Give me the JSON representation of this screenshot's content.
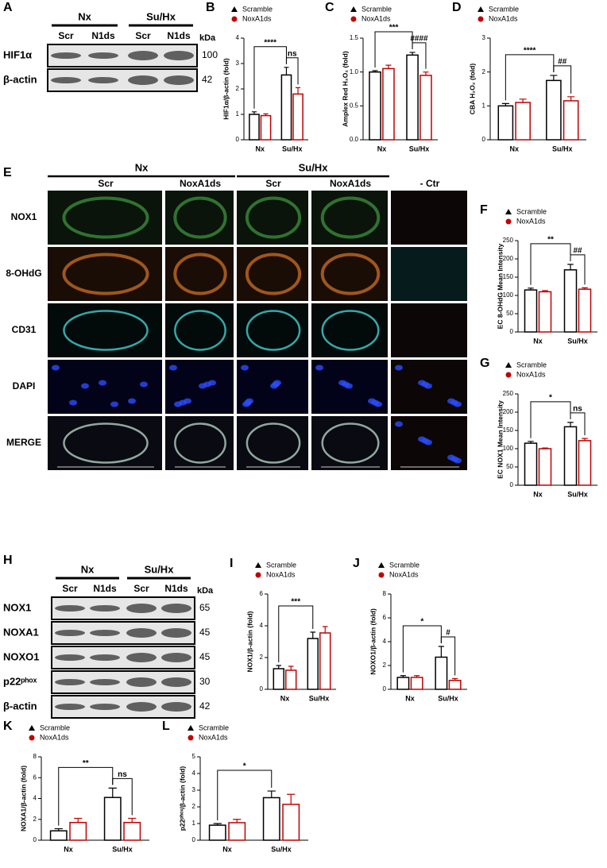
{
  "blot_a": {
    "letter": "A",
    "groups": [
      "Nx",
      "Su/Hx"
    ],
    "lanes": [
      "Scr",
      "N1ds",
      "Scr",
      "N1ds"
    ],
    "unit": "kDa",
    "rows": [
      {
        "label": "HIF1α",
        "kda": "100"
      },
      {
        "label": "β-actin",
        "kda": "42"
      }
    ]
  },
  "micro": {
    "letter": "E",
    "groups": [
      "Nx",
      "Su/Hx"
    ],
    "columns": [
      "Scr",
      "NoxA1ds",
      "Scr",
      "NoxA1ds",
      "- Ctr"
    ],
    "rows": [
      "NOX1",
      "8-OHdG",
      "CD31",
      "DAPI",
      "MERGE"
    ]
  },
  "blot_h": {
    "letter": "H",
    "groups": [
      "Nx",
      "Su/Hx"
    ],
    "lanes": [
      "Scr",
      "N1ds",
      "Scr",
      "N1ds"
    ],
    "unit": "kDa",
    "rows": [
      {
        "label": "NOX1",
        "kda": "65"
      },
      {
        "label": "NOXA1",
        "kda": "45"
      },
      {
        "label": "NOXO1",
        "kda": "45"
      },
      {
        "label": "p22ᵖʰᵒˣ",
        "kda": "30"
      },
      {
        "label": "β-actin",
        "kda": "42"
      }
    ]
  },
  "chart_data": [
    {
      "type": "bar",
      "letter": "B",
      "y_label": "HIF1α/β-actin (fold)",
      "categories": [
        "Nx",
        "Su/Hx"
      ],
      "series": [
        {
          "name": "Scramble",
          "color": "#000000",
          "values": [
            1.0,
            2.55
          ],
          "errors": [
            0.1,
            0.3
          ]
        },
        {
          "name": "NoxA1ds",
          "color": "#c00000",
          "values": [
            0.95,
            1.8
          ],
          "errors": [
            0.07,
            0.25
          ]
        }
      ],
      "ylim": [
        0,
        4
      ],
      "yticks": [
        0,
        1,
        2,
        3,
        4
      ],
      "annotations": [
        "****",
        "ns"
      ]
    },
    {
      "type": "bar",
      "letter": "C",
      "y_label": "Amplex Red H₂O₂ (fold)",
      "categories": [
        "Nx",
        "Su/Hx"
      ],
      "series": [
        {
          "name": "Scramble",
          "color": "#000000",
          "values": [
            1.0,
            1.25
          ],
          "errors": [
            0.02,
            0.04
          ]
        },
        {
          "name": "NoxA1ds",
          "color": "#c00000",
          "values": [
            1.05,
            0.95
          ],
          "errors": [
            0.05,
            0.05
          ]
        }
      ],
      "ylim": [
        0,
        1.5
      ],
      "yticks": [
        {
          "value": 0,
          "label": "0.0"
        },
        0.5,
        {
          "value": 1,
          "label": "1.0"
        },
        1.5
      ],
      "annotations": [
        "***",
        "####"
      ]
    },
    {
      "type": "bar",
      "letter": "D",
      "y_label": "CBA H₂O₂ (fold)",
      "categories": [
        "Nx",
        "Su/Hx"
      ],
      "series": [
        {
          "name": "Scramble",
          "color": "#000000",
          "values": [
            1.0,
            1.75
          ],
          "errors": [
            0.07,
            0.15
          ]
        },
        {
          "name": "NoxA1ds",
          "color": "#c00000",
          "values": [
            1.1,
            1.15
          ],
          "errors": [
            0.1,
            0.12
          ]
        }
      ],
      "ylim": [
        0,
        3
      ],
      "yticks": [
        0,
        1,
        2,
        3
      ],
      "annotations": [
        "****",
        "##"
      ]
    },
    {
      "type": "bar",
      "letter": "F",
      "y_label": "EC 8-OHdG Mean Intensity",
      "categories": [
        "Nx",
        "Su/Hx"
      ],
      "series": [
        {
          "name": "Scramble",
          "color": "#000000",
          "values": [
            115,
            170
          ],
          "errors": [
            5,
            15
          ]
        },
        {
          "name": "NoxA1ds",
          "color": "#c00000",
          "values": [
            110,
            117
          ],
          "errors": [
            3,
            4
          ]
        }
      ],
      "ylim": [
        0,
        250
      ],
      "yticks": [
        0,
        50,
        100,
        150,
        200,
        250
      ],
      "annotations": [
        "**",
        "##"
      ]
    },
    {
      "type": "bar",
      "letter": "G",
      "y_label": "EC NOX1 Mean Intensity",
      "categories": [
        "Nx",
        "Su/Hx"
      ],
      "series": [
        {
          "name": "Scramble",
          "color": "#000000",
          "values": [
            115,
            160
          ],
          "errors": [
            5,
            12
          ]
        },
        {
          "name": "NoxA1ds",
          "color": "#c00000",
          "values": [
            100,
            122
          ],
          "errors": [
            2,
            6
          ]
        }
      ],
      "ylim": [
        0,
        250
      ],
      "yticks": [
        0,
        50,
        100,
        150,
        200,
        250
      ],
      "annotations": [
        "*",
        "ns"
      ]
    },
    {
      "type": "bar",
      "letter": "I",
      "y_label": "NOX1/β-actin (fold)",
      "categories": [
        "Nx",
        "Su/Hx"
      ],
      "series": [
        {
          "name": "Scramble",
          "color": "#000000",
          "values": [
            1.3,
            3.2
          ],
          "errors": [
            0.2,
            0.4
          ]
        },
        {
          "name": "NoxA1ds",
          "color": "#c00000",
          "values": [
            1.2,
            3.55
          ],
          "errors": [
            0.25,
            0.4
          ]
        }
      ],
      "ylim": [
        0,
        6
      ],
      "yticks": [
        0,
        2,
        4,
        6
      ],
      "annotations": [
        "***"
      ]
    },
    {
      "type": "bar",
      "letter": "J",
      "y_label": "NOXO1/β-actin (fold)",
      "categories": [
        "Nx",
        "Su/Hx"
      ],
      "series": [
        {
          "name": "Scramble",
          "color": "#000000",
          "values": [
            1.0,
            2.7
          ],
          "errors": [
            0.15,
            0.9
          ]
        },
        {
          "name": "NoxA1ds",
          "color": "#c00000",
          "values": [
            1.0,
            0.75
          ],
          "errors": [
            0.15,
            0.15
          ]
        }
      ],
      "ylim": [
        0,
        8
      ],
      "yticks": [
        0,
        2,
        4,
        6,
        8
      ],
      "annotations": [
        "*",
        "#"
      ]
    },
    {
      "type": "bar",
      "letter": "K",
      "y_label": "NOXA1/β-actin (fold)",
      "categories": [
        "Nx",
        "Su/Hx"
      ],
      "series": [
        {
          "name": "Scramble",
          "color": "#000000",
          "values": [
            0.9,
            4.1
          ],
          "errors": [
            0.2,
            0.9
          ]
        },
        {
          "name": "NoxA1ds",
          "color": "#c00000",
          "values": [
            1.7,
            1.7
          ],
          "errors": [
            0.4,
            0.4
          ]
        }
      ],
      "ylim": [
        0,
        8
      ],
      "yticks": [
        0,
        2,
        4,
        6,
        8
      ],
      "annotations": [
        "**",
        "ns"
      ]
    },
    {
      "type": "bar",
      "letter": "L",
      "y_label": "p22ᵖʰᵒˣ/β-actin (fold)",
      "categories": [
        "Nx",
        "Su/Hx"
      ],
      "series": [
        {
          "name": "Scramble",
          "color": "#000000",
          "values": [
            0.9,
            2.55
          ],
          "errors": [
            0.1,
            0.4
          ]
        },
        {
          "name": "NoxA1ds",
          "color": "#c00000",
          "values": [
            1.05,
            2.15
          ],
          "errors": [
            0.2,
            0.6
          ]
        }
      ],
      "ylim": [
        0,
        5
      ],
      "yticks": [
        0,
        1,
        2,
        3,
        4,
        5
      ],
      "annotations": [
        "*"
      ]
    }
  ]
}
